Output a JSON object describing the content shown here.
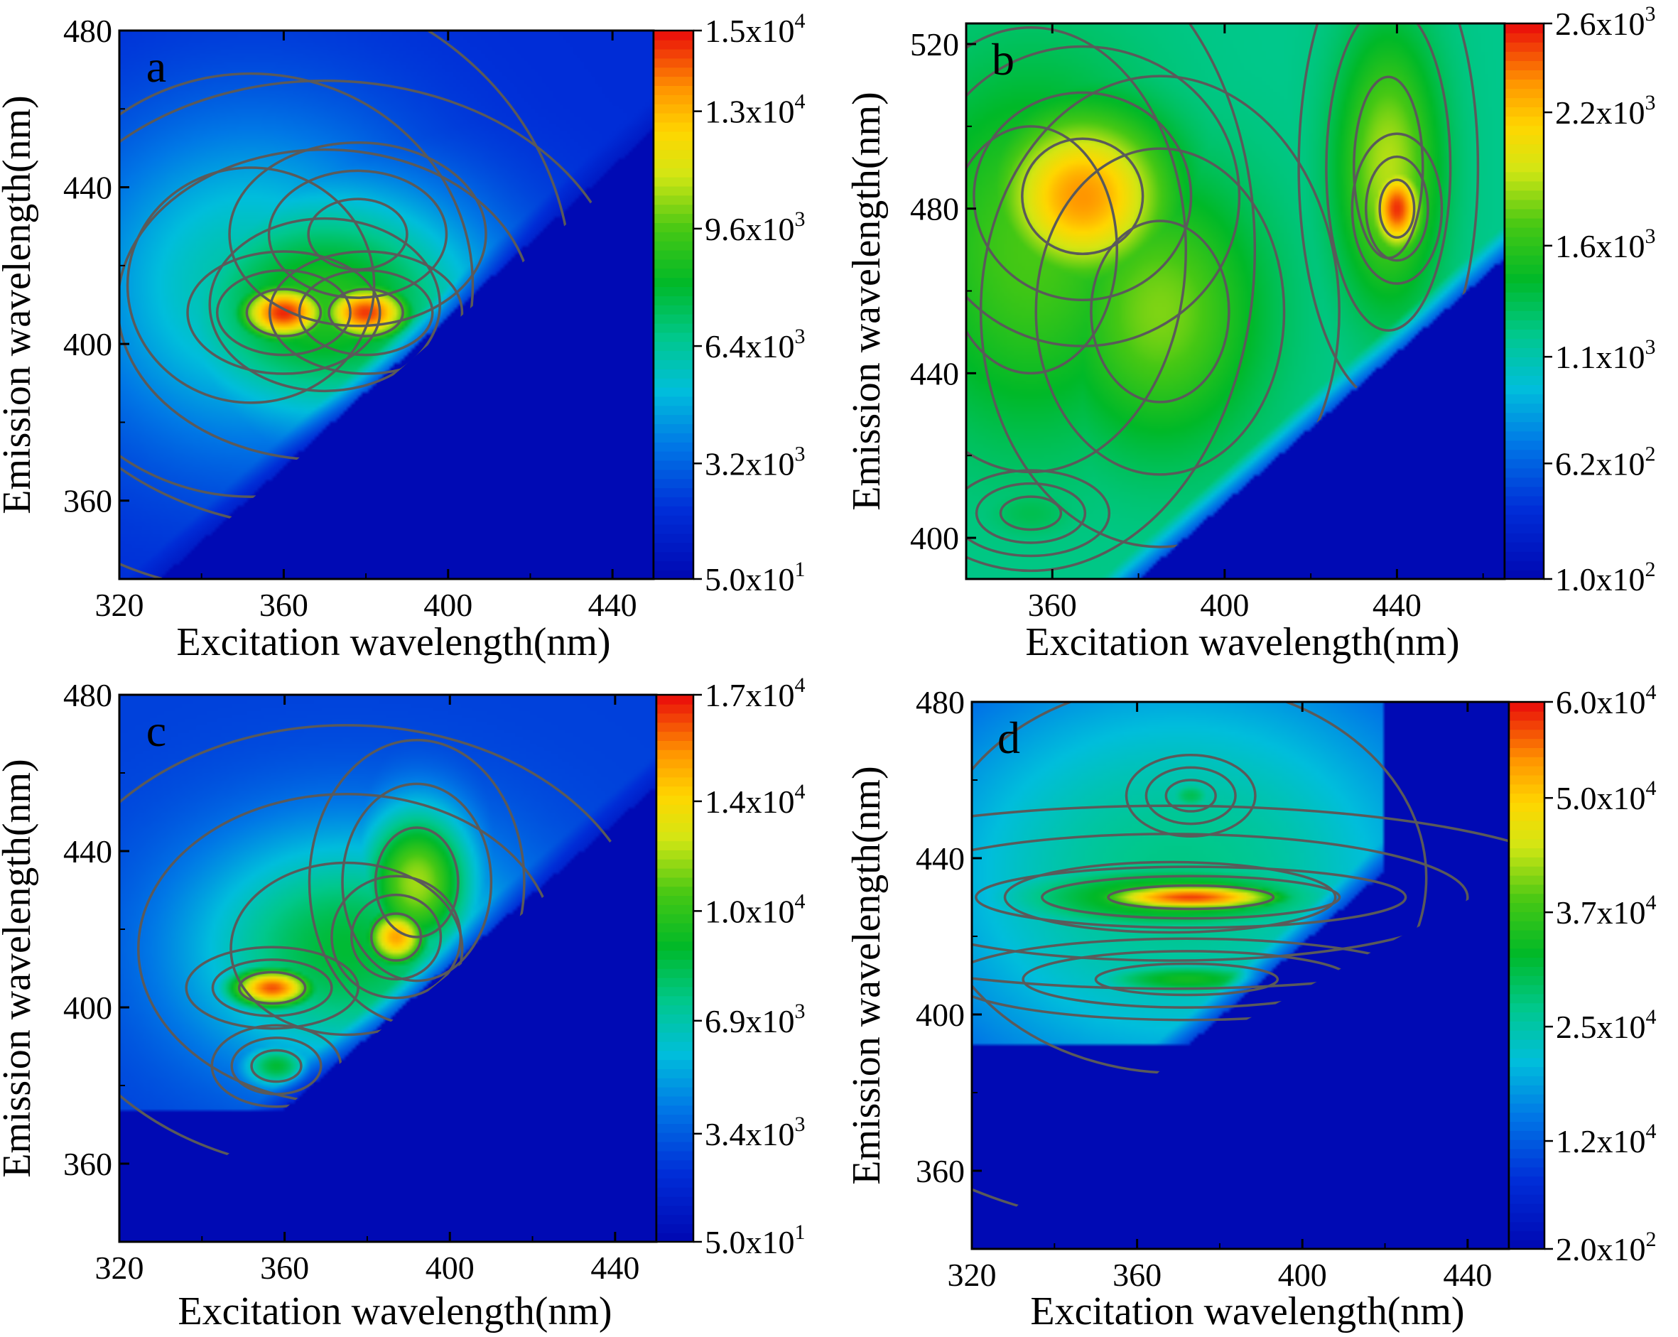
{
  "chart_data": [
    {
      "type": "heatmap",
      "panel_label": "a",
      "xlabel": "Excitation wavelength(nm)",
      "ylabel": "Emission wavelength(nm)",
      "xlim": [
        320,
        450
      ],
      "ylim": [
        340,
        480
      ],
      "xticks": [
        "320",
        "360",
        "400",
        "440"
      ],
      "yticks": [
        "360",
        "400",
        "440",
        "480"
      ],
      "colorbar": {
        "range": [
          50,
          15000
        ],
        "labels": [
          {
            "m": "5.0x10",
            "e": "1",
            "v": 50
          },
          {
            "m": "3.2x10",
            "e": "3",
            "v": 3200
          },
          {
            "m": "6.4x10",
            "e": "3",
            "v": 6400
          },
          {
            "m": "9.6x10",
            "e": "3",
            "v": 9600
          },
          {
            "m": "1.3x10",
            "e": "4",
            "v": 12800
          },
          {
            "m": "1.5x10",
            "e": "4",
            "v": 15000
          }
        ]
      },
      "peaks": [
        {
          "ex": 360,
          "em": 408,
          "value": 14800,
          "sx": 9,
          "sy": 6
        },
        {
          "ex": 380,
          "em": 408,
          "value": 14600,
          "sx": 9,
          "sy": 6
        },
        {
          "ex": 370,
          "em": 410,
          "value": 9000,
          "sx": 28,
          "sy": 22
        },
        {
          "ex": 378,
          "em": 428,
          "value": 6000,
          "sx": 12,
          "sy": 9
        },
        {
          "ex": 352,
          "em": 415,
          "value": 6200,
          "sx": 30,
          "sy": 30
        }
      ],
      "background": 1800,
      "cutoff": {
        "ex0": 330,
        "em0": 340,
        "ex1": 445,
        "em1": 450
      },
      "left_fade": {
        "ex_end": 326,
        "value": 3000
      }
    },
    {
      "type": "heatmap",
      "panel_label": "b",
      "xlabel": "Excitation wavelength(nm)",
      "ylabel": "Emission wavelength(nm)",
      "xlim": [
        340,
        465
      ],
      "ylim": [
        390,
        525
      ],
      "xticks": [
        "360",
        "400",
        "440"
      ],
      "yticks": [
        "400",
        "440",
        "480",
        "520"
      ],
      "colorbar": {
        "range": [
          100,
          2600
        ],
        "labels": [
          {
            "m": "1.0x10",
            "e": "2",
            "v": 100
          },
          {
            "m": "6.2x10",
            "e": "2",
            "v": 620
          },
          {
            "m": "1.1x10",
            "e": "3",
            "v": 1100
          },
          {
            "m": "1.6x10",
            "e": "3",
            "v": 1600
          },
          {
            "m": "2.2x10",
            "e": "3",
            "v": 2200
          },
          {
            "m": "2.6x10",
            "e": "3",
            "v": 2600
          }
        ]
      },
      "peaks": [
        {
          "ex": 367,
          "em": 483,
          "value": 2350,
          "sx": 14,
          "sy": 14
        },
        {
          "ex": 440,
          "em": 480,
          "value": 2550,
          "sx": 4,
          "sy": 7
        },
        {
          "ex": 438,
          "em": 490,
          "value": 1900,
          "sx": 8,
          "sy": 22
        },
        {
          "ex": 385,
          "em": 455,
          "value": 1800,
          "sx": 16,
          "sy": 22
        },
        {
          "ex": 355,
          "em": 470,
          "value": 1700,
          "sx": 20,
          "sy": 30
        },
        {
          "ex": 355,
          "em": 406,
          "value": 1350,
          "sx": 7,
          "sy": 4
        }
      ],
      "background": 1200,
      "cutoff": {
        "ex0": 380,
        "em0": 390,
        "ex1": 465,
        "em1": 468
      },
      "left_fade": {
        "ex_end": 340,
        "value": 1200
      }
    },
    {
      "type": "heatmap",
      "panel_label": "c",
      "xlabel": "Excitation wavelength(nm)",
      "ylabel": "Emission wavelength(nm)",
      "xlim": [
        320,
        450
      ],
      "ylim": [
        340,
        480
      ],
      "xticks": [
        "320",
        "360",
        "400",
        "440"
      ],
      "yticks": [
        "360",
        "400",
        "440",
        "480"
      ],
      "colorbar": {
        "range": [
          50,
          17000
        ],
        "labels": [
          {
            "m": "5.0x10",
            "e": "1",
            "v": 50
          },
          {
            "m": "3.4x10",
            "e": "3",
            "v": 3400
          },
          {
            "m": "6.9x10",
            "e": "3",
            "v": 6900
          },
          {
            "m": "1.0x10",
            "e": "4",
            "v": 10300
          },
          {
            "m": "1.4x10",
            "e": "4",
            "v": 13700
          },
          {
            "m": "1.7x10",
            "e": "4",
            "v": 17000
          }
        ]
      },
      "peaks": [
        {
          "ex": 357,
          "em": 405,
          "value": 16200,
          "sx": 8,
          "sy": 4
        },
        {
          "ex": 387,
          "em": 418,
          "value": 15000,
          "sx": 6,
          "sy": 6
        },
        {
          "ex": 392,
          "em": 432,
          "value": 12000,
          "sx": 10,
          "sy": 14
        },
        {
          "ex": 375,
          "em": 415,
          "value": 9000,
          "sx": 28,
          "sy": 22
        },
        {
          "ex": 358,
          "em": 385,
          "value": 9000,
          "sx": 6,
          "sy": 4
        }
      ],
      "background": 2600,
      "cutoff": {
        "ex0": 360,
        "em0": 374,
        "ex1": 445,
        "em1": 452
      },
      "left_fade": {
        "ex_end": 320,
        "value": 2600
      },
      "floor_below": 374
    },
    {
      "type": "heatmap",
      "panel_label": "d",
      "xlabel": "Excitation wavelength(nm)",
      "ylabel": "Emission wavelength(nm)",
      "xlim": [
        320,
        450
      ],
      "ylim": [
        340,
        480
      ],
      "xticks": [
        "320",
        "360",
        "400",
        "440"
      ],
      "yticks": [
        "360",
        "400",
        "440",
        "480"
      ],
      "colorbar": {
        "range": [
          200,
          60000
        ],
        "labels": [
          {
            "m": "2.0x10",
            "e": "2",
            "v": 200
          },
          {
            "m": "1.2x10",
            "e": "4",
            "v": 12000
          },
          {
            "m": "2.5x10",
            "e": "4",
            "v": 24500
          },
          {
            "m": "3.7x10",
            "e": "4",
            "v": 37000
          },
          {
            "m": "5.0x10",
            "e": "4",
            "v": 49500
          },
          {
            "m": "6.0x10",
            "e": "4",
            "v": 60000
          }
        ]
      },
      "peaks": [
        {
          "ex": 373,
          "em": 430,
          "value": 58000,
          "sx": 20,
          "sy": 3
        },
        {
          "ex": 368,
          "em": 430,
          "value": 36000,
          "sx": 40,
          "sy": 9
        },
        {
          "ex": 372,
          "em": 409,
          "value": 34000,
          "sx": 22,
          "sy": 4
        },
        {
          "ex": 373,
          "em": 456,
          "value": 30000,
          "sx": 6,
          "sy": 4
        },
        {
          "ex": 370,
          "em": 435,
          "value": 27000,
          "sx": 60,
          "sy": 50
        }
      ],
      "background": 2000,
      "cutoff": {
        "ex0": 368,
        "em0": 388,
        "ex1": 418,
        "em1": 435
      },
      "left_fade": {
        "ex_end": 320,
        "value": 2000
      },
      "floor_below": 392,
      "right_cut": 420
    }
  ]
}
